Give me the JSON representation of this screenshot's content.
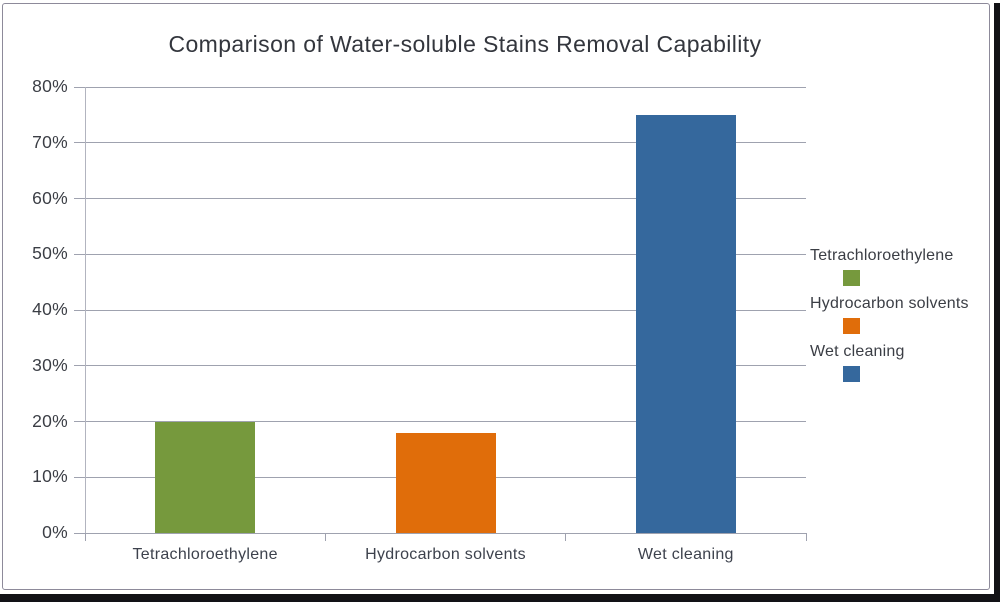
{
  "chart_data": {
    "type": "bar",
    "title": "Comparison of Water-soluble Stains Removal Capability",
    "categories": [
      "Tetrachloroethylene",
      "Hydrocarbon solvents",
      "Wet cleaning"
    ],
    "values": [
      20,
      18,
      75
    ],
    "value_unit": "%",
    "xlabel": "",
    "ylabel": "",
    "ylim": [
      0,
      80
    ],
    "ytick_step": 10,
    "ytick_labels": [
      "0%",
      "10%",
      "20%",
      "30%",
      "40%",
      "50%",
      "60%",
      "70%",
      "80%"
    ],
    "grid": true,
    "legend_position": "right",
    "legend": [
      {
        "label": "Tetrachloroethylene",
        "color": "#76993d"
      },
      {
        "label": "Hydrocarbon solvents",
        "color": "#e06d0a"
      },
      {
        "label": "Wet cleaning",
        "color": "#35689d"
      }
    ],
    "series_colors": [
      "#76993d",
      "#e06d0a",
      "#35689d"
    ]
  },
  "style": {
    "background": "#ffffff",
    "frame_border_color": "#8d8a9a",
    "gridline_color": "#9fa2af",
    "axis_line_color": "#b2b4bf",
    "title_color": "#33363d",
    "text_color": "#3b3e45",
    "shadow_color": "#121216"
  }
}
